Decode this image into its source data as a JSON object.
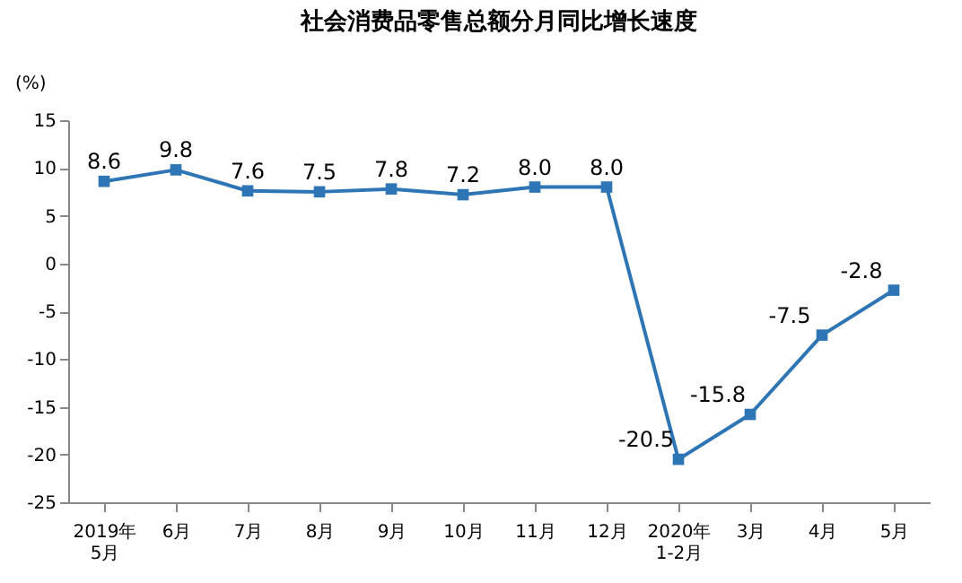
{
  "chart_data": {
    "type": "line",
    "title": "社会消费品零售总额分月同比增长速度",
    "ylabel": "(%)",
    "categories": [
      "2019年\n5月",
      "6月",
      "7月",
      "8月",
      "9月",
      "10月",
      "11月",
      "12月",
      "2020年\n1-2月",
      "3月",
      "4月",
      "5月"
    ],
    "series": [
      {
        "color": "#2e75b6",
        "values": [
          8.6,
          9.8,
          7.6,
          7.5,
          7.8,
          7.2,
          8.0,
          8.0,
          -20.5,
          -15.8,
          -7.5,
          -2.8
        ],
        "value_labels": [
          "8.6",
          "9.8",
          "7.6",
          "7.5",
          "7.8",
          "7.2",
          "8.0",
          "8.0",
          "-20.5",
          "-15.8",
          "-7.5",
          "-2.8"
        ]
      }
    ],
    "ylim": [
      -25,
      15
    ],
    "yticks": [
      -25,
      -20,
      -15,
      -10,
      -5,
      0,
      5,
      10,
      15
    ],
    "grid": false,
    "marker": "square",
    "line_style": "solid"
  }
}
